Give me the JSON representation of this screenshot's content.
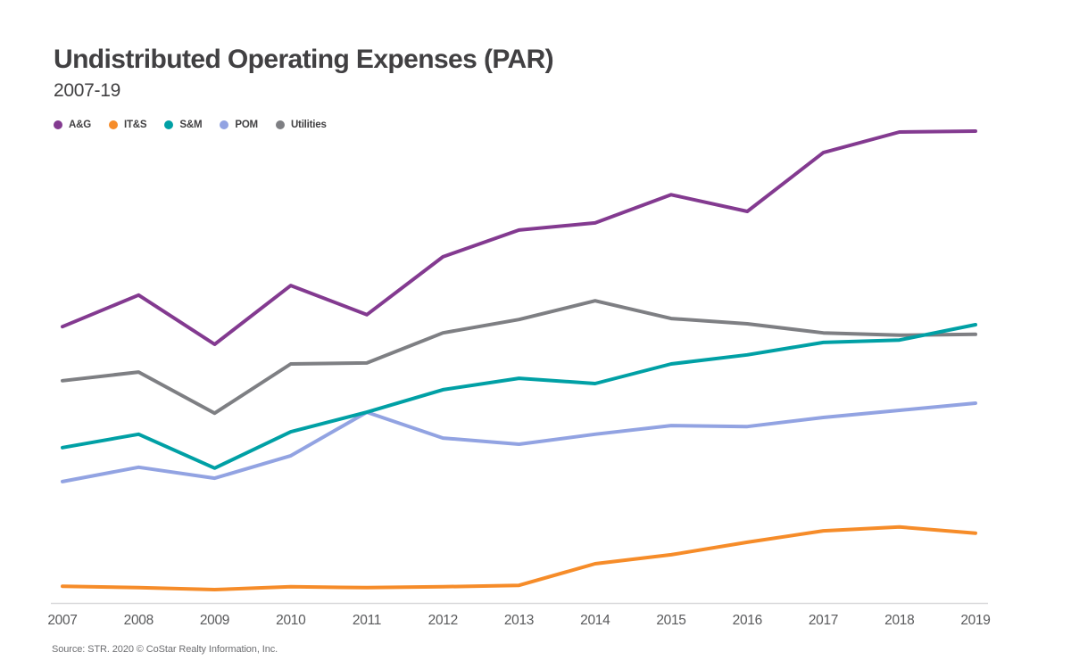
{
  "header": {
    "title": "Undistributed Operating Expenses (PAR)",
    "subtitle": "2007-19"
  },
  "chart_data": {
    "type": "line",
    "title": "Undistributed Operating Expenses (PAR)",
    "subtitle": "2007-19",
    "x": [
      2007,
      2008,
      2009,
      2010,
      2011,
      2012,
      2013,
      2014,
      2015,
      2016,
      2017,
      2018,
      2019
    ],
    "series": [
      {
        "name": "A&G",
        "color": "#833A90",
        "values": [
          57.8,
          64.4,
          54.1,
          66.4,
          60.3,
          72.4,
          78.0,
          79.5,
          85.4,
          81.9,
          94.2,
          98.5,
          98.7
        ]
      },
      {
        "name": "IT&S",
        "color": "#F68C29",
        "values": [
          3.5,
          3.2,
          2.8,
          3.4,
          3.2,
          3.4,
          3.7,
          8.2,
          10.1,
          12.7,
          15.1,
          15.9,
          14.6
        ]
      },
      {
        "name": "S&M",
        "color": "#00A0A5",
        "values": [
          32.5,
          35.3,
          28.2,
          35.8,
          39.9,
          44.6,
          47.0,
          45.9,
          50.0,
          51.9,
          54.5,
          55.0,
          58.2
        ]
      },
      {
        "name": "POM",
        "color": "#92A3E2",
        "values": [
          25.4,
          28.4,
          26.1,
          30.8,
          39.9,
          34.5,
          33.2,
          35.3,
          37.1,
          36.9,
          38.8,
          40.3,
          41.8
        ]
      },
      {
        "name": "Utilities",
        "color": "#7E7F83",
        "values": [
          46.5,
          48.3,
          39.7,
          50.0,
          50.2,
          56.5,
          59.3,
          63.2,
          59.5,
          58.4,
          56.5,
          56.0,
          56.2
        ]
      }
    ],
    "xlabel": "",
    "ylabel": "",
    "ylim": [
      0,
      100
    ],
    "units": "relative index (no y-axis labels shown in source)",
    "grid": false,
    "y_axis_visible": false,
    "legend_position": "top-left",
    "axis_color": "#D9D9DB"
  },
  "footer": {
    "source": "Source: STR. 2020 © CoStar Realty Information, Inc."
  }
}
